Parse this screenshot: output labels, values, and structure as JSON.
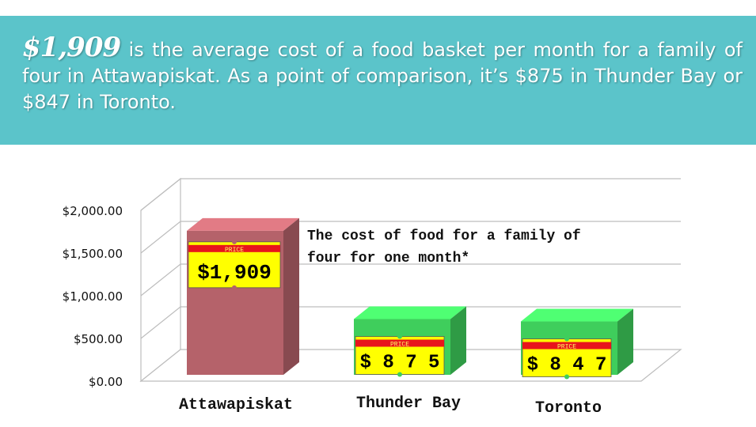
{
  "header": {
    "highlight": "$1,909",
    "text": " is the average cost of a food basket per month for a family of four in Attawapiskat. As a point of comparison, it’s $875 in Thunder Bay or $847 in Toronto.",
    "background": "#5bc4ca"
  },
  "chart_data": {
    "type": "bar",
    "categories": [
      "Attawapiskat",
      "Thunder Bay",
      "Toronto"
    ],
    "values": [
      1909,
      875,
      847
    ],
    "price_tags": [
      "$1,909",
      "$ 8 7 5",
      "$ 8 4 7"
    ],
    "tag_label": "PRICE",
    "yticks": [
      "$0.00",
      "$500.00",
      "$1,000.00",
      "$1,500.00",
      "$2,000.00"
    ],
    "ylim": [
      0,
      2000
    ],
    "grid": true,
    "annotation": [
      "The cost of food for a family of",
      "four for one month*"
    ],
    "colors": [
      "#b5626a",
      "#3fce5c",
      "#3fce5c"
    ],
    "icons": [
      "shopping-cart-icon"
    ]
  }
}
